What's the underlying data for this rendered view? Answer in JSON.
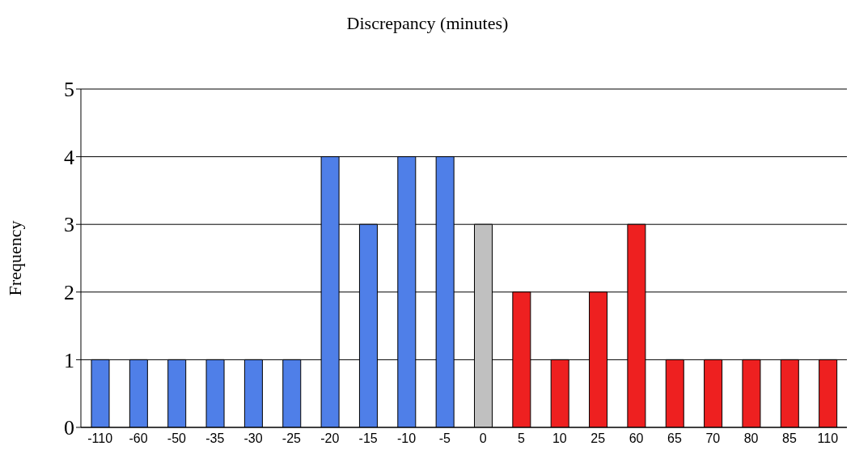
{
  "chart_data": {
    "type": "bar",
    "title": "Discrepancy (minutes)",
    "ylabel": "Frequency",
    "categories": [
      "-110",
      "-60",
      "-50",
      "-35",
      "-30",
      "-25",
      "-20",
      "-15",
      "-10",
      "-5",
      "0",
      "5",
      "10",
      "25",
      "60",
      "65",
      "70",
      "80",
      "85",
      "110"
    ],
    "values": [
      1,
      1,
      1,
      1,
      1,
      1,
      4,
      3,
      4,
      4,
      3,
      2,
      1,
      2,
      3,
      1,
      1,
      1,
      1,
      1
    ],
    "colors": [
      "#4f7fe8",
      "#4f7fe8",
      "#4f7fe8",
      "#4f7fe8",
      "#4f7fe8",
      "#4f7fe8",
      "#4f7fe8",
      "#4f7fe8",
      "#4f7fe8",
      "#4f7fe8",
      "#c0c0c0",
      "#ee2020",
      "#ee2020",
      "#ee2020",
      "#ee2020",
      "#ee2020",
      "#ee2020",
      "#ee2020",
      "#ee2020",
      "#ee2020"
    ],
    "ylim": [
      0,
      5
    ],
    "yticks": [
      0,
      1,
      2,
      3,
      4,
      5
    ],
    "grid": "y"
  }
}
